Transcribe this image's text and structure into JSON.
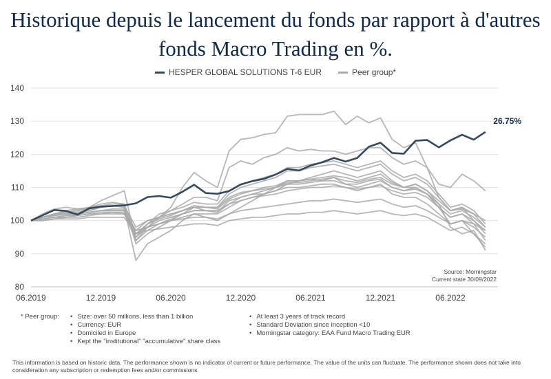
{
  "title_line1": "Historique depuis le lancement du fonds par rapport à d'autres",
  "title_line2": "fonds Macro Trading en %.",
  "chart_data": {
    "type": "line",
    "title": "Historique depuis le lancement du fonds par rapport à d'autres fonds Macro Trading en %.",
    "xlabel": "",
    "ylabel": "",
    "x_ticks": [
      "06.2019",
      "12.2019",
      "06.2020",
      "12.2020",
      "06.2021",
      "12.2021",
      "06.2022"
    ],
    "x_range": [
      "2019-06",
      "2022-09"
    ],
    "ylim": [
      80,
      140
    ],
    "y_ticks": [
      80,
      90,
      100,
      110,
      120,
      130,
      140
    ],
    "grid": "horizontal",
    "legend_position": "top",
    "end_label": "26.75%",
    "source_line1": "Source: Morningstar",
    "source_line2": "Current state 30/09/2022",
    "series": [
      {
        "name": "HESPER GLOBAL SOLUTIONS T-6 EUR",
        "color": "#34495e",
        "values": [
          100,
          101.6,
          103.2,
          102.9,
          101.8,
          103.7,
          104.2,
          104.4,
          104.6,
          105.2,
          107.1,
          107.4,
          106.9,
          108.7,
          110.8,
          108.3,
          108.1,
          108.9,
          110.9,
          111.9,
          112.6,
          113.9,
          115.6,
          115.1,
          116.6,
          117.6,
          118.9,
          117.8,
          118.9,
          122.3,
          123.5,
          120.4,
          120.2,
          124.1,
          124.3,
          122.1,
          124.2,
          125.9,
          124.4,
          126.75
        ]
      },
      {
        "name": "Peer group*",
        "color": "#a9a9a9",
        "values": [
          100,
          102,
          103.5,
          104,
          103.5,
          103.5,
          104,
          104.5,
          104,
          88,
          93,
          95,
          97,
          100,
          102,
          101,
          100,
          102,
          104,
          106,
          108,
          110,
          112,
          112,
          113,
          114,
          115,
          114,
          113,
          114,
          115,
          112,
          110,
          110,
          108,
          105,
          98,
          96,
          97,
          91
        ]
      },
      {
        "name": "",
        "color": "#a9a9a9",
        "values": [
          100,
          101,
          102,
          102.5,
          103,
          104,
          106,
          107.5,
          109,
          94,
          98,
          101,
          104,
          110,
          114.5,
          112,
          110,
          121,
          124.5,
          125,
          126,
          126.5,
          131.5,
          132,
          132,
          132,
          133,
          129,
          131.5,
          129.5,
          131,
          124.5,
          122,
          123.5,
          116,
          107,
          103,
          103.5,
          102,
          98
        ]
      },
      {
        "name": "",
        "color": "#a9a9a9",
        "values": [
          100,
          101,
          102,
          102,
          102.5,
          103,
          104,
          104.5,
          104,
          95,
          99,
          102,
          103,
          105,
          107,
          107,
          106,
          116,
          118,
          117,
          119,
          120,
          122,
          121,
          121.5,
          121,
          121,
          120,
          121,
          122,
          122,
          119,
          117,
          118,
          116,
          111,
          110,
          114,
          112,
          109
        ]
      },
      {
        "name": "",
        "color": "#a9a9a9",
        "values": [
          100,
          100.5,
          101,
          101,
          101.5,
          102,
          102,
          102.5,
          102,
          96,
          98,
          99,
          100,
          101,
          102,
          102,
          102,
          104,
          106,
          107,
          108,
          109,
          111,
          112,
          112.5,
          112,
          113,
          111,
          110,
          111,
          112,
          110,
          109,
          110,
          108,
          104,
          99,
          100,
          96,
          93
        ]
      },
      {
        "name": "",
        "color": "#a9a9a9",
        "values": [
          100,
          101,
          101.5,
          102,
          102,
          102.5,
          103,
          103,
          103,
          97,
          100,
          101,
          102,
          103,
          104,
          103,
          103,
          105,
          107,
          108,
          108,
          109,
          110,
          110,
          110.5,
          111,
          111,
          110,
          109,
          110,
          111,
          108,
          107,
          107,
          105,
          102,
          99,
          100,
          98,
          95
        ]
      },
      {
        "name": "",
        "color": "#a9a9a9",
        "values": [
          100,
          100,
          100.5,
          101,
          101,
          101.5,
          102,
          102,
          102,
          97,
          98,
          99,
          100,
          100.5,
          101,
          101,
          100.5,
          102,
          103,
          103.5,
          104,
          104.5,
          105,
          105.5,
          106,
          106,
          106.5,
          106,
          105.5,
          106,
          106.5,
          105,
          104,
          104.5,
          103,
          101,
          99,
          100,
          99,
          97
        ]
      },
      {
        "name": "",
        "color": "#a9a9a9",
        "values": [
          100,
          101,
          102,
          103,
          103.5,
          104,
          105,
          105.5,
          105,
          93,
          96,
          98,
          100,
          102,
          104,
          104,
          104,
          108,
          110,
          111,
          112,
          113,
          115,
          115,
          116,
          116.5,
          117,
          116,
          115,
          116,
          117,
          114,
          112,
          113,
          111,
          107,
          103,
          104,
          100,
          96
        ]
      },
      {
        "name": "",
        "color": "#a9a9a9",
        "values": [
          100,
          100.5,
          101,
          101.5,
          101.5,
          102,
          102.5,
          102.5,
          102.5,
          94,
          97,
          99,
          100.5,
          102,
          103,
          103,
          102.5,
          106,
          107,
          108,
          109,
          110,
          111,
          111,
          111.5,
          112,
          112,
          111,
          111,
          112,
          112.5,
          110,
          109,
          109.5,
          108,
          104,
          101,
          102,
          99,
          94
        ]
      },
      {
        "name": "",
        "color": "#a9a9a9",
        "values": [
          100,
          101,
          101.5,
          102,
          102.5,
          103,
          104,
          104.5,
          104.5,
          98,
          100,
          101,
          102,
          103,
          104.5,
          104,
          104,
          107,
          108.5,
          109,
          109.5,
          110,
          111.5,
          111.5,
          112,
          112.5,
          113,
          112,
          111.5,
          112.5,
          113,
          111,
          110,
          111,
          109,
          106,
          103,
          104,
          102,
          100
        ]
      },
      {
        "name": "",
        "color": "#a9a9a9",
        "values": [
          100,
          100.5,
          101,
          101.5,
          102,
          102.5,
          103,
          103,
          103,
          95,
          98,
          100,
          101,
          102,
          103,
          103,
          102.5,
          105,
          106,
          107,
          107.5,
          108,
          109,
          109.5,
          110,
          110,
          110.5,
          110,
          109.5,
          110,
          110.5,
          109,
          108,
          108.5,
          107,
          104,
          101,
          102,
          100,
          97
        ]
      },
      {
        "name": "",
        "color": "#a9a9a9",
        "values": [
          100,
          101,
          102,
          102.5,
          103,
          103.5,
          104.5,
          105,
          105,
          96,
          99,
          101,
          103,
          104,
          105.5,
          105,
          105,
          109,
          111,
          112,
          113,
          114,
          116,
          116,
          117,
          117.5,
          118,
          117,
          116,
          117,
          118,
          115,
          113,
          114,
          112,
          108,
          104,
          105,
          103,
          99
        ]
      },
      {
        "name": "",
        "color": "#a9a9a9",
        "values": [
          100,
          100,
          100.5,
          100.5,
          100.5,
          101,
          101,
          101,
          101,
          96,
          97,
          97.5,
          98,
          98.5,
          99,
          99,
          98.5,
          100,
          100.5,
          101,
          101,
          101.5,
          102,
          102,
          102.5,
          102.5,
          103,
          102.5,
          102,
          102.5,
          103,
          102,
          101.5,
          102,
          101,
          99,
          97,
          98,
          96,
          92
        ]
      },
      {
        "name": "",
        "color": "#a9a9a9",
        "values": [
          100,
          101,
          101.5,
          102,
          102,
          102.5,
          103,
          103.5,
          103.5,
          96,
          99,
          100.5,
          101.5,
          103,
          104,
          104,
          103.5,
          106.5,
          108,
          109,
          110,
          110.5,
          112,
          112,
          112.5,
          113,
          113.5,
          113,
          112,
          113,
          114,
          111.5,
          110,
          111,
          109,
          105,
          102,
          103,
          101,
          98
        ]
      }
    ]
  },
  "legend": {
    "series1_label": "HESPER GLOBAL SOLUTIONS T-6 EUR",
    "series2_label": "Peer group*"
  },
  "peer_notes": {
    "lead": "* Peer group:",
    "col1": [
      "Size: over 50 millions, less than 1 billion",
      "Currency: EUR",
      "Domiciled in Europe",
      "Kept the \"institutional\" \"accumulative\" share class"
    ],
    "col2": [
      "At least 3 years of track record",
      "Standard Deviation since inception <10",
      "Morningstar category: EAA Fund Macro Trading EUR"
    ]
  },
  "disclaimer": "This information is based on historic data. The performance shown is no indicator of current or future performance. The value of the units can fluctuate. The performance shown does not take into consideration any subscription or redemption fees and/or commissions."
}
